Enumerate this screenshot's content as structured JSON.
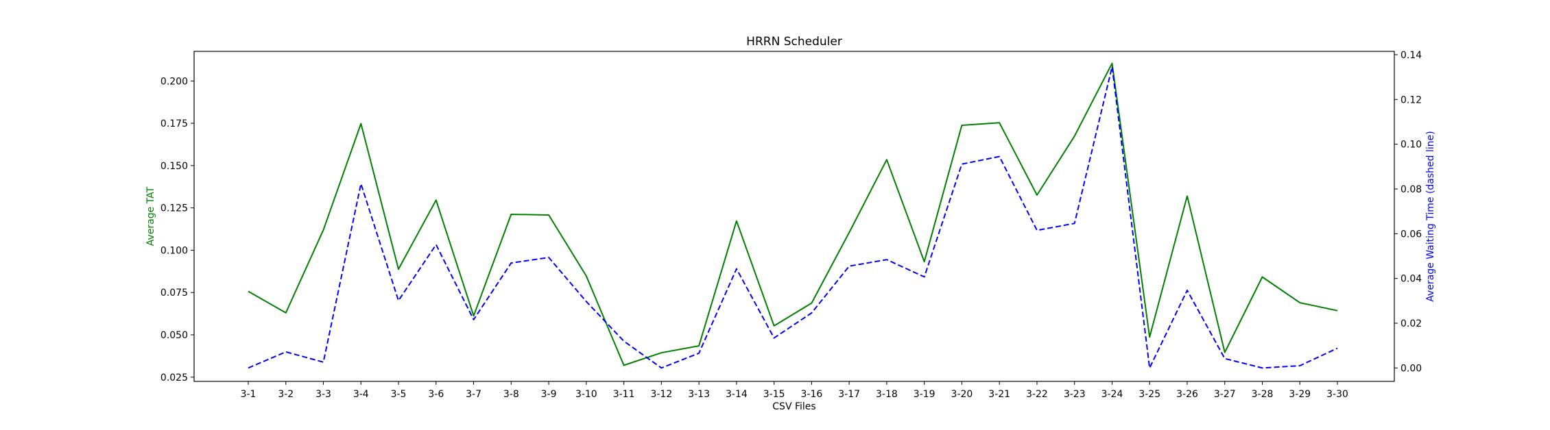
{
  "chart_data": {
    "type": "line",
    "title": "HRRN Scheduler",
    "xlabel": "CSV Files",
    "ylabel_left": "Average TAT",
    "ylabel_right": "Average Waiting Time (dashed line)",
    "ylim_left": [
      0.0225,
      0.2175
    ],
    "ylim_right": [
      -0.006,
      0.1415
    ],
    "yticks_left": [
      "0.025",
      "0.050",
      "0.075",
      "0.100",
      "0.125",
      "0.150",
      "0.175",
      "0.200"
    ],
    "yticks_right": [
      "0.00",
      "0.02",
      "0.04",
      "0.06",
      "0.08",
      "0.10",
      "0.12",
      "0.14"
    ],
    "categories": [
      "3-1",
      "3-2",
      "3-3",
      "3-4",
      "3-5",
      "3-6",
      "3-7",
      "3-8",
      "3-9",
      "3-10",
      "3-11",
      "3-12",
      "3-13",
      "3-14",
      "3-15",
      "3-16",
      "3-17",
      "3-18",
      "3-19",
      "3-20",
      "3-21",
      "3-22",
      "3-23",
      "3-24",
      "3-25",
      "3-26",
      "3-27",
      "3-28",
      "3-29",
      "3-30"
    ],
    "grid": false,
    "series": [
      {
        "axis": "left",
        "style": "solid",
        "color": "#008000",
        "values": [
          0.0757,
          0.063,
          0.112,
          0.1748,
          0.0888,
          0.1296,
          0.0612,
          0.1212,
          0.1208,
          0.0848,
          0.032,
          0.0394,
          0.0435,
          0.1173,
          0.0553,
          0.0688,
          0.1105,
          0.1535,
          0.0932,
          0.1738,
          0.1753,
          0.1326,
          0.1674,
          0.2104,
          0.0487,
          0.132,
          0.0396,
          0.0842,
          0.069,
          0.0643
        ]
      },
      {
        "axis": "right",
        "style": "dashed",
        "color": "#0000ff",
        "values": [
          0.0,
          0.0072,
          0.0026,
          0.0823,
          0.0301,
          0.0551,
          0.0216,
          0.0469,
          0.0494,
          0.0297,
          0.012,
          0.0,
          0.0066,
          0.0443,
          0.0134,
          0.0246,
          0.0455,
          0.0484,
          0.0407,
          0.0911,
          0.0945,
          0.0615,
          0.0646,
          0.1346,
          0.0,
          0.0347,
          0.0042,
          0.0,
          0.001,
          0.0088
        ]
      }
    ]
  }
}
